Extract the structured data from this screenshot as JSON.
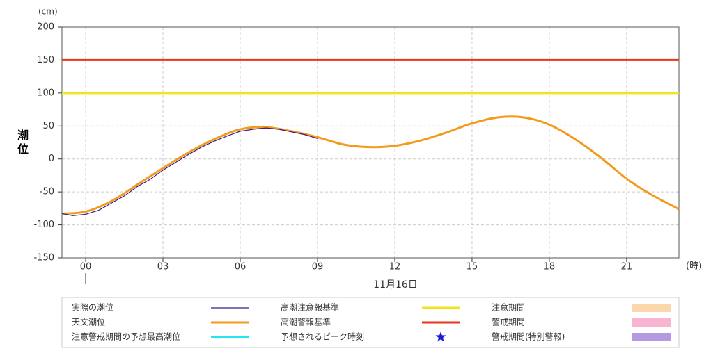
{
  "chart_data": {
    "type": "line",
    "y_label": "潮位",
    "y_unit": "(cm)",
    "x_unit": "(時)",
    "date_label": "11月16日",
    "xlim": [
      -0.92,
      23.03
    ],
    "xticks": [
      {
        "value": 0,
        "label": "00"
      },
      {
        "value": 3,
        "label": "03"
      },
      {
        "value": 6,
        "label": "06"
      },
      {
        "value": 9,
        "label": "09"
      },
      12,
      15,
      18,
      21
    ],
    "ylim": [
      -150,
      200
    ],
    "yticks": [
      -150,
      -100,
      -50,
      0,
      50,
      100,
      150,
      200
    ],
    "grid": true,
    "series": [
      {
        "name": "実際の潮位",
        "color": "#3a1a8c",
        "x": [
          -0.92,
          -0.5,
          0,
          0.5,
          1,
          1.5,
          2,
          2.5,
          3,
          3.5,
          4,
          4.5,
          5,
          5.5,
          6,
          6.5,
          7,
          7.5,
          8,
          8.5,
          9
        ],
        "values": [
          -83,
          -86,
          -84,
          -78,
          -67,
          -56,
          -42,
          -31,
          -17,
          -5,
          7,
          18,
          27,
          35,
          42,
          45,
          47,
          45,
          41,
          37,
          31
        ]
      },
      {
        "name": "天文潮位",
        "color": "#f39a1c",
        "x": [
          -0.92,
          0,
          1,
          2,
          3,
          4,
          5,
          6,
          7,
          8,
          9,
          10,
          11,
          12,
          13,
          14,
          15,
          16,
          17,
          18,
          19,
          20,
          21,
          22,
          23.03
        ],
        "values": [
          -83,
          -80,
          -64,
          -39,
          -14,
          10,
          30,
          45,
          48,
          42,
          33,
          22,
          18,
          20,
          28,
          40,
          54,
          63,
          63,
          52,
          30,
          2,
          -30,
          -55,
          -76
        ]
      }
    ],
    "reference_lines": [
      {
        "name": "高潮注意報基準",
        "color": "#f2e41c",
        "value": 100
      },
      {
        "name": "高潮警報基準",
        "color": "#e8361c",
        "value": 150
      }
    ],
    "extra_legend": [
      {
        "name": "注意警戒期間の予想最高潮位",
        "color": "#22e6f0",
        "symbol": "line"
      },
      {
        "name": "予想されるピーク時刻",
        "color": "#1a1ad8",
        "symbol": "star"
      },
      {
        "name": "注意期間",
        "color": "#fbd7ab",
        "symbol": "box"
      },
      {
        "name": "警戒期間",
        "color": "#f8b4d0",
        "symbol": "box"
      },
      {
        "name": "警戒期間(特別警報)",
        "color": "#b49ae0",
        "symbol": "box"
      }
    ]
  }
}
